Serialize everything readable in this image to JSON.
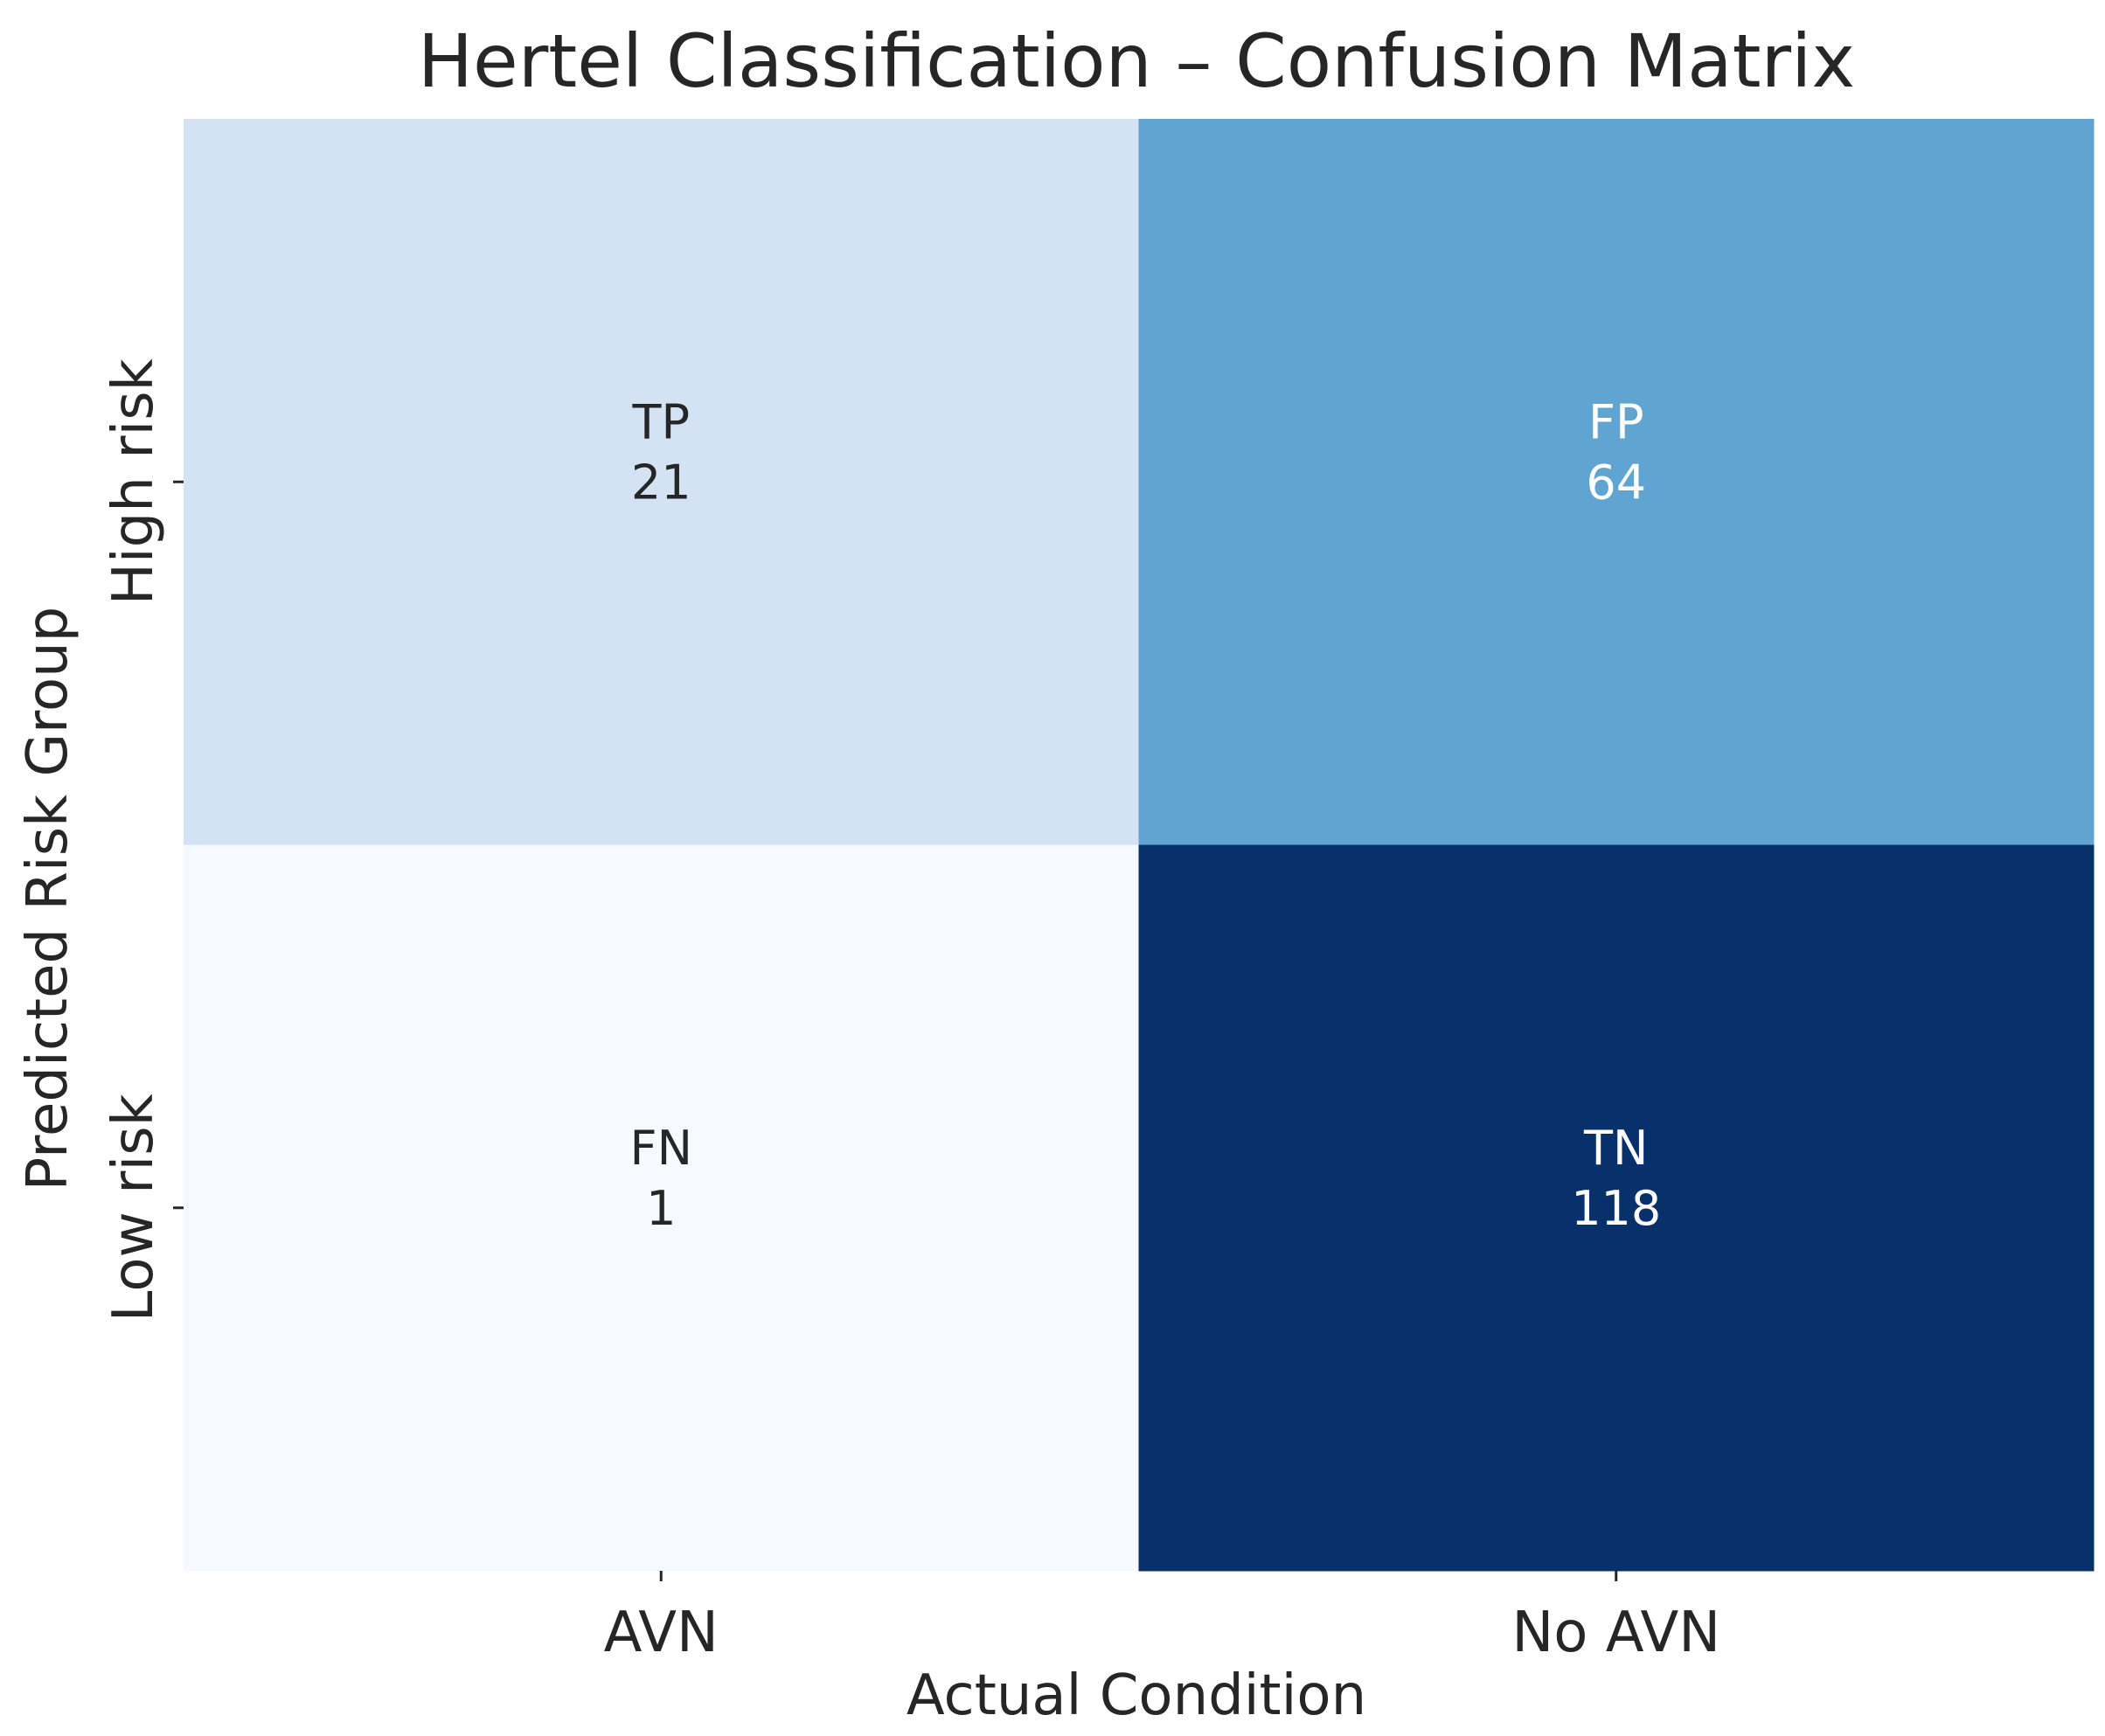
{
  "chart_data": {
    "type": "heatmap",
    "title": "Hertel Classification – Confusion Matrix",
    "xlabel": "Actual Condition",
    "ylabel": "Predicted Risk Group",
    "x_categories": [
      "AVN",
      "No AVN"
    ],
    "y_categories": [
      "High risk",
      "Low risk"
    ],
    "cells": [
      {
        "row": 0,
        "col": 0,
        "label": "TP",
        "value": 21
      },
      {
        "row": 0,
        "col": 1,
        "label": "FP",
        "value": 64
      },
      {
        "row": 1,
        "col": 0,
        "label": "FN",
        "value": 1
      },
      {
        "row": 1,
        "col": 1,
        "label": "TN",
        "value": 118
      }
    ],
    "colormap": "Blues",
    "colorbar": false,
    "colors": {
      "cells": [
        "#d3e3f3",
        "#60a5d1",
        "#f6fafe",
        "#08306b"
      ],
      "text_dark": "#262626",
      "text_light": "#ffffff"
    }
  }
}
